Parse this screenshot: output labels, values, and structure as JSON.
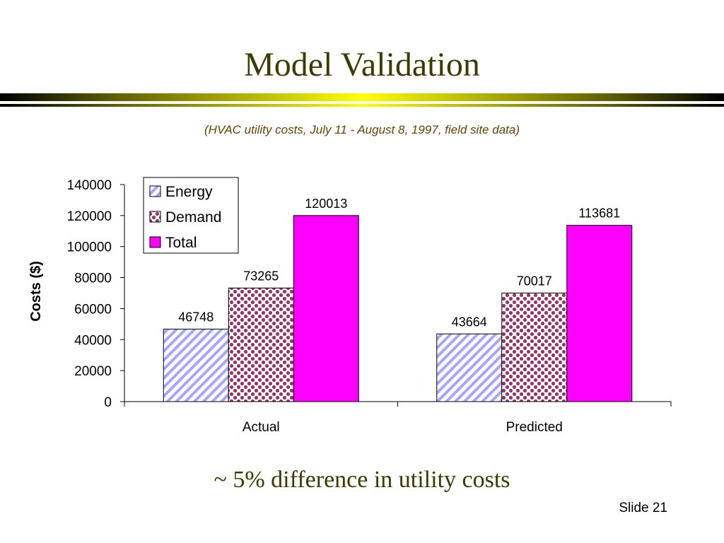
{
  "slide": {
    "title": "Model Validation",
    "subtitle": "(HVAC utility costs, July 11 - August 8, 1997, field site data)",
    "bottom_text": "~ 5% difference in utility costs",
    "slide_number": "Slide 21"
  },
  "colors": {
    "title": "#3d3a00",
    "energy_stripe": "#a6a6ff",
    "demand_dot": "#993366",
    "total": "#ff00ff"
  },
  "chart_data": {
    "type": "bar",
    "title": "",
    "xlabel": "",
    "ylabel": "Costs ($)",
    "categories": [
      "Actual",
      "Predicted"
    ],
    "series": [
      {
        "name": "Energy",
        "values": [
          46748,
          43664
        ],
        "pattern": "diagonal-stripes"
      },
      {
        "name": "Demand",
        "values": [
          73265,
          70017
        ],
        "pattern": "dots"
      },
      {
        "name": "Total",
        "values": [
          120013,
          113681
        ],
        "pattern": "solid"
      }
    ],
    "data_labels": [
      [
        "46748",
        "43664"
      ],
      [
        "73265",
        "70017"
      ],
      [
        "120013",
        "113681"
      ]
    ],
    "ylim": [
      0,
      140000
    ],
    "yticks": [
      0,
      20000,
      40000,
      60000,
      80000,
      100000,
      120000,
      140000
    ],
    "grid": false,
    "legend_position": "top-left"
  }
}
